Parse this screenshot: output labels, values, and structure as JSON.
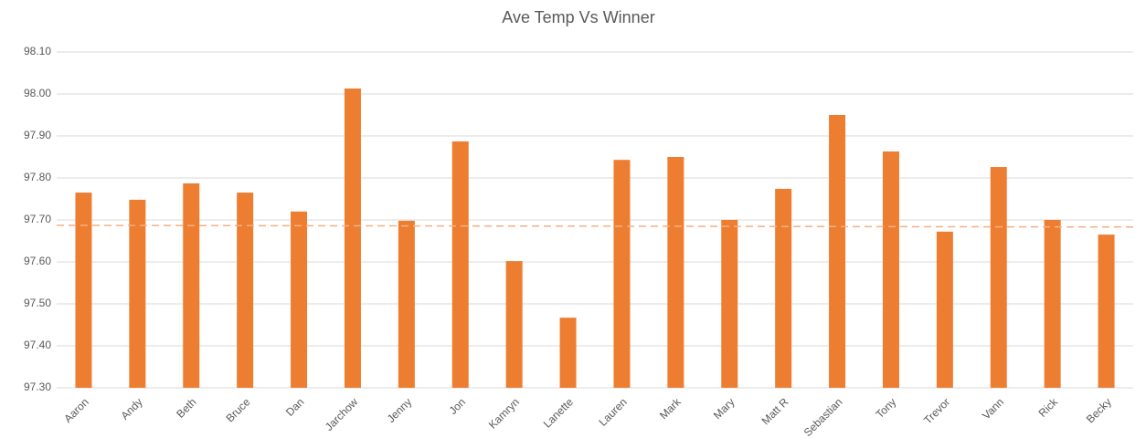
{
  "chart_data": {
    "type": "bar",
    "title": "Ave Temp Vs Winner",
    "categories": [
      "Aaron",
      "Andy",
      "Beth",
      "Bruce",
      "Dan",
      "Jarchow",
      "Jenny",
      "Jon",
      "Kamryn",
      "Lanette",
      "Lauren",
      "Mark",
      "Mary",
      "Matt R",
      "Sebastian",
      "Tony",
      "Trevor",
      "Vann",
      "Rick",
      "Becky"
    ],
    "values": [
      97.765,
      97.748,
      97.787,
      97.765,
      97.72,
      98.013,
      97.698,
      97.887,
      97.602,
      97.467,
      97.843,
      97.85,
      97.7,
      97.774,
      97.95,
      97.863,
      97.672,
      97.826,
      97.7,
      97.665
    ],
    "color": "#ed7d31",
    "trendline": {
      "values": [
        97.687,
        97.683
      ],
      "color": "#f4b183",
      "dashed": true
    },
    "ylim": [
      97.3,
      98.1
    ],
    "yticks": [
      {
        "value": 97.3,
        "label": "97.30"
      },
      {
        "value": 97.4,
        "label": "97.40"
      },
      {
        "value": 97.5,
        "label": "97.50"
      },
      {
        "value": 97.6,
        "label": "97.60"
      },
      {
        "value": 97.7,
        "label": "97.70"
      },
      {
        "value": 97.8,
        "label": "97.80"
      },
      {
        "value": 97.9,
        "label": "97.90"
      },
      {
        "value": 98.0,
        "label": "98.00"
      },
      {
        "value": 98.1,
        "label": "98.10"
      }
    ],
    "grid": true
  }
}
